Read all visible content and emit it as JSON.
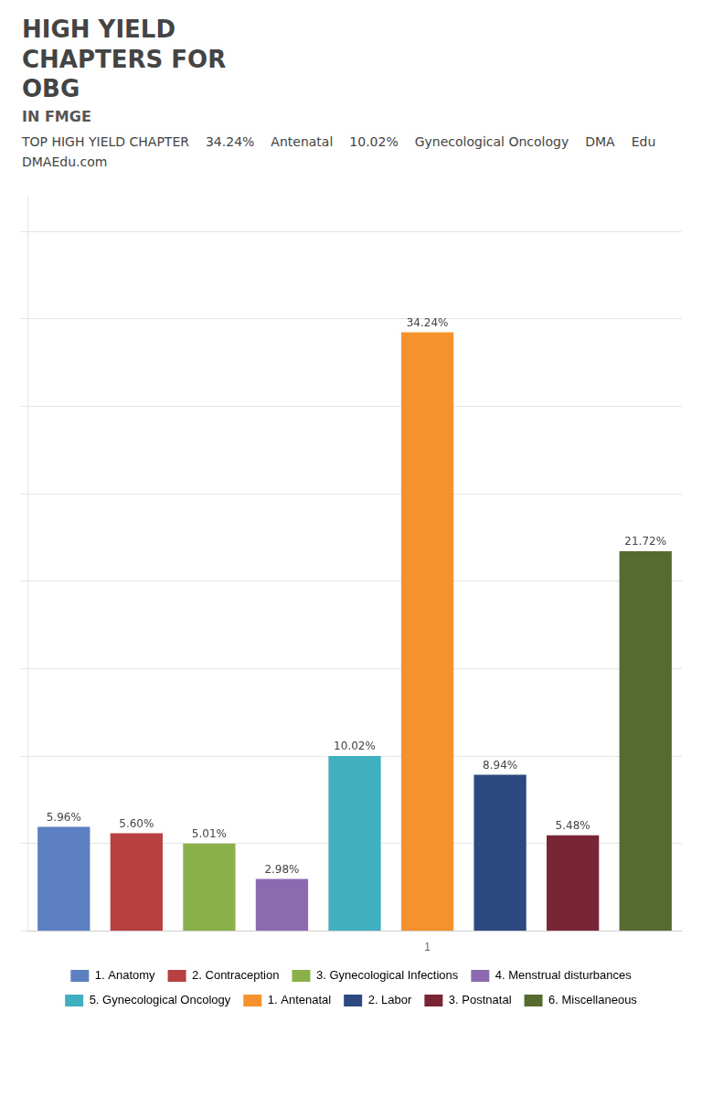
{
  "chart_data": {
    "type": "bar",
    "title": [
      "HIGH YIELD",
      "CHAPTERS FOR",
      "OBG"
    ],
    "subtitle": "IN FMGE",
    "annotations": [
      "TOP HIGH YIELD CHAPTER",
      "34.24%",
      "Antenatal",
      "10.02%",
      "Gynecological Oncology",
      "DMA",
      "Edu",
      "DMAEdu.com"
    ],
    "categories": [
      null,
      null,
      null,
      null,
      null,
      "1",
      null,
      null,
      null
    ],
    "values": [
      5.96,
      5.6,
      5.01,
      2.98,
      10.02,
      34.24,
      8.94,
      5.48,
      21.72
    ],
    "value_labels": [
      "5.96%",
      "5.60%",
      "5.01%",
      "2.98%",
      "10.02%",
      "34.24%",
      "8.94%",
      "5.48%",
      "21.72%"
    ],
    "colors": [
      "#5b7fc1",
      "#b84040",
      "#8ab04a",
      "#8b6ab0",
      "#40b0c0",
      "#f5922e",
      "#2c4a80",
      "#7a2535",
      "#556b2f"
    ],
    "data_labels": true,
    "legend": "bottom",
    "legend_entries": [
      "1. Anatomy",
      "2. Contraception",
      "3. Gynecological Infections",
      "4. Menstrual disturbances",
      "5. Gynecological Oncology",
      "1. Antenatal",
      "2. Labor",
      "3. Postnatal",
      "6. Miscellaneous"
    ],
    "ylim": [
      0,
      42
    ],
    "yticks": [
      0,
      5,
      10,
      15,
      20,
      25,
      30,
      35,
      40
    ],
    "grid": true,
    "tick_labels": "x"
  }
}
